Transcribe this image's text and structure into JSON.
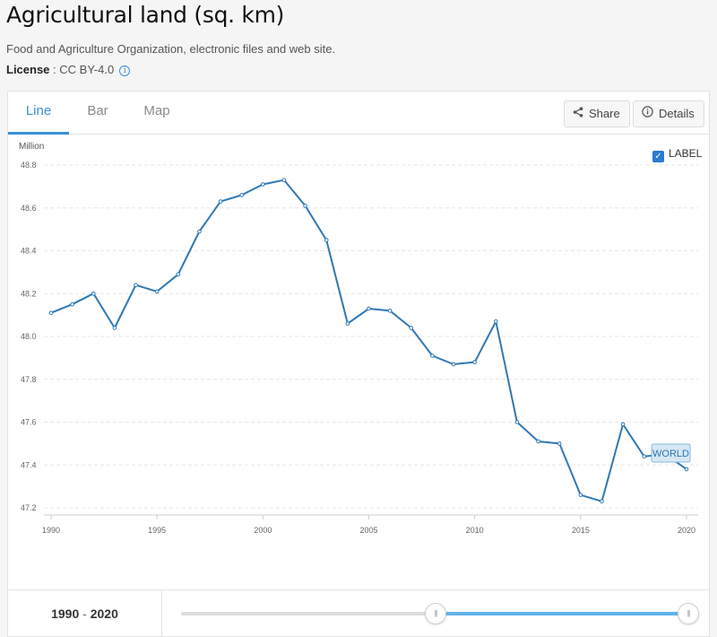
{
  "page": {
    "title": "Agricultural land (sq. km)",
    "source": "Food and Agriculture Organization, electronic files and web site.",
    "license_label": "License",
    "license_sep": " : ",
    "license_value": "CC BY-4.0"
  },
  "tabs": [
    {
      "label": "Line",
      "active": true
    },
    {
      "label": "Bar",
      "active": false
    },
    {
      "label": "Map",
      "active": false
    }
  ],
  "buttons": {
    "share": "Share",
    "details": "Details"
  },
  "label_toggle": {
    "text": "LABEL",
    "checked": true
  },
  "range": {
    "start": "1990",
    "sep": "-",
    "end": "2020"
  },
  "slider": {
    "min_year": 1960,
    "max_year": 2020,
    "start_year": 1990,
    "end_year": 2020
  },
  "colors": {
    "accent": "#3b8fd6",
    "line": "#2e78b5",
    "slider_fill": "#5fb3e8"
  },
  "chart_data": {
    "type": "line",
    "ylabel": "Million",
    "ylim": [
      47.2,
      48.8
    ],
    "yticks": [
      "47.2",
      "47.4",
      "47.6",
      "47.8",
      "48.0",
      "48.2",
      "48.4",
      "48.6",
      "48.8"
    ],
    "xticks": [
      "1990",
      "1995",
      "2000",
      "2005",
      "2010",
      "2015",
      "2020"
    ],
    "grid": true,
    "x": [
      1990,
      1991,
      1992,
      1993,
      1994,
      1995,
      1996,
      1997,
      1998,
      1999,
      2000,
      2001,
      2002,
      2003,
      2004,
      2005,
      2006,
      2007,
      2008,
      2009,
      2010,
      2011,
      2012,
      2013,
      2014,
      2015,
      2016,
      2017,
      2018,
      2019,
      2020
    ],
    "series": [
      {
        "name": "WORLD",
        "values": [
          48.11,
          48.15,
          48.2,
          48.04,
          48.24,
          48.21,
          48.29,
          48.49,
          48.63,
          48.66,
          48.71,
          48.73,
          48.61,
          48.45,
          48.06,
          48.13,
          48.12,
          48.04,
          47.91,
          47.87,
          47.88,
          48.07,
          47.6,
          47.51,
          47.5,
          47.26,
          47.23,
          47.59,
          47.44,
          47.45,
          47.38
        ]
      }
    ]
  }
}
